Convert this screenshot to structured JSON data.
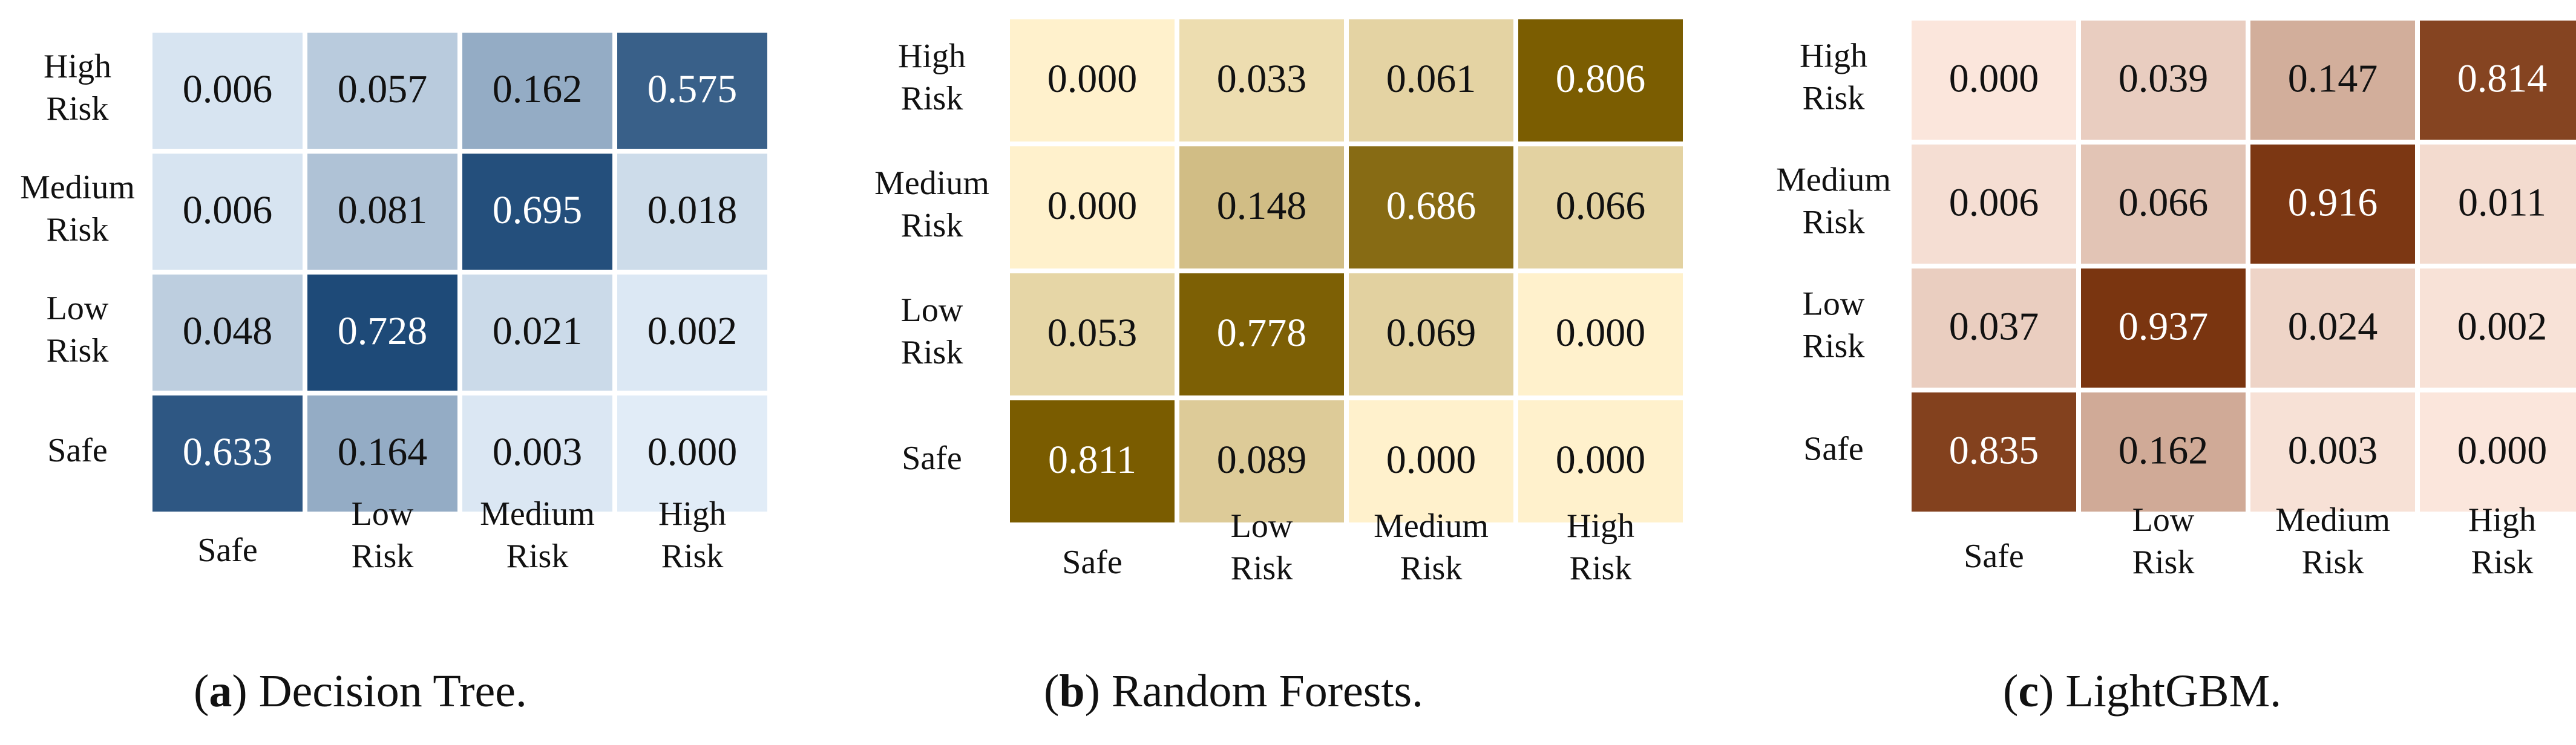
{
  "row_labels": [
    [
      "High",
      "Risk"
    ],
    [
      "Medium",
      "Risk"
    ],
    [
      "Low",
      "Risk"
    ],
    [
      "Safe"
    ]
  ],
  "col_labels": [
    [
      "Safe"
    ],
    [
      "Low",
      "Risk"
    ],
    [
      "Medium",
      "Risk"
    ],
    [
      "High",
      "Risk"
    ]
  ],
  "chart_data": [
    {
      "type": "heatmap",
      "caption_letter": "a",
      "caption_text": " Decision Tree.",
      "colormap": [
        "#e1ecf7",
        "#1e4a78"
      ],
      "rows": [
        "High Risk",
        "Medium Risk",
        "Low Risk",
        "Safe"
      ],
      "cols": [
        "Safe",
        "Low Risk",
        "Medium Risk",
        "High Risk"
      ],
      "values": [
        [
          0.006,
          0.057,
          0.162,
          0.575
        ],
        [
          0.006,
          0.081,
          0.695,
          0.018
        ],
        [
          0.048,
          0.728,
          0.021,
          0.002
        ],
        [
          0.633,
          0.164,
          0.003,
          0.0
        ]
      ]
    },
    {
      "type": "heatmap",
      "caption_letter": "b",
      "caption_text": " Random Forests.",
      "colormap": [
        "#fff1cc",
        "#7a5c00"
      ],
      "rows": [
        "High Risk",
        "Medium Risk",
        "Low Risk",
        "Safe"
      ],
      "cols": [
        "Safe",
        "Low Risk",
        "Medium Risk",
        "High Risk"
      ],
      "values": [
        [
          0.0,
          0.033,
          0.061,
          0.806
        ],
        [
          0.0,
          0.148,
          0.686,
          0.066
        ],
        [
          0.053,
          0.778,
          0.069,
          0.0
        ],
        [
          0.811,
          0.089,
          0.0,
          0.0
        ]
      ]
    },
    {
      "type": "heatmap",
      "caption_letter": "c",
      "caption_text": " LightGBM.",
      "colormap": [
        "#fbe6dc",
        "#7a3510"
      ],
      "rows": [
        "High Risk",
        "Medium Risk",
        "Low Risk",
        "Safe"
      ],
      "cols": [
        "Safe",
        "Low Risk",
        "Medium Risk",
        "High Risk"
      ],
      "values": [
        [
          0.0,
          0.039,
          0.147,
          0.814
        ],
        [
          0.006,
          0.066,
          0.916,
          0.011
        ],
        [
          0.037,
          0.937,
          0.024,
          0.002
        ],
        [
          0.835,
          0.162,
          0.003,
          0.0
        ]
      ]
    }
  ]
}
